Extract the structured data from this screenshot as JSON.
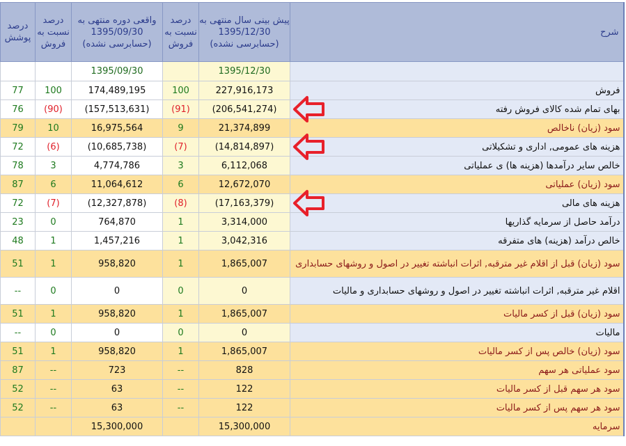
{
  "header": {
    "coverage_pct": "درصد پوشش",
    "actual_pct_of_sales": "درصد نسبت به فروش",
    "actual": "واقعی دوره منتهی به 1395/09/30 (حسابرسی نشده)",
    "forecast_pct_of_sales": "درصد نسبت به فروش",
    "forecast": "پیش بینی سال منتهی به 1395/12/30 (حسابرسی نشده)",
    "description": "شرح"
  },
  "dates": {
    "actual": "1395/09/30",
    "forecast": "1395/12/30"
  },
  "rows": [
    {
      "desc": "فروش",
      "forecast": "227,916,173",
      "forecast_pct": "100",
      "actual": "174,489,195",
      "actual_pct": "100",
      "coverage": "77",
      "highlight": false,
      "neg": false
    },
    {
      "desc": "بهای تمام شده کالای فروش رفته",
      "forecast": "(206,541,274)",
      "forecast_pct": "(91)",
      "actual": "(157,513,631)",
      "actual_pct": "(90)",
      "coverage": "76",
      "highlight": false,
      "neg": true
    },
    {
      "desc": "سود (زیان) ناخالص",
      "forecast": "21,374,899",
      "forecast_pct": "9",
      "actual": "16,975,564",
      "actual_pct": "10",
      "coverage": "79",
      "highlight": true,
      "neg": false
    },
    {
      "desc": "هزینه های عمومی, اداری و تشکیلاتی",
      "forecast": "(14,814,897)",
      "forecast_pct": "(7)",
      "actual": "(10,685,738)",
      "actual_pct": "(6)",
      "coverage": "72",
      "highlight": false,
      "neg": true
    },
    {
      "desc": "خالص سایر درآمدها (هزینه ها) ی عملیاتی",
      "forecast": "6,112,068",
      "forecast_pct": "3",
      "actual": "4,774,786",
      "actual_pct": "3",
      "coverage": "78",
      "highlight": false,
      "neg": false
    },
    {
      "desc": "سود (زیان) عملیاتی",
      "forecast": "12,672,070",
      "forecast_pct": "6",
      "actual": "11,064,612",
      "actual_pct": "6",
      "coverage": "87",
      "highlight": true,
      "neg": false
    },
    {
      "desc": "هزینه های مالی",
      "forecast": "(17,163,379)",
      "forecast_pct": "(8)",
      "actual": "(12,327,878)",
      "actual_pct": "(7)",
      "coverage": "72",
      "highlight": false,
      "neg": true
    },
    {
      "desc": "درآمد حاصل از سرمایه گذاریها",
      "forecast": "3,314,000",
      "forecast_pct": "1",
      "actual": "764,870",
      "actual_pct": "0",
      "coverage": "23",
      "highlight": false,
      "neg": false
    },
    {
      "desc": "خالص درآمد (هزینه) های متفرقه",
      "forecast": "3,042,316",
      "forecast_pct": "1",
      "actual": "1,457,216",
      "actual_pct": "1",
      "coverage": "48",
      "highlight": false,
      "neg": false
    },
    {
      "desc": "سود (زیان) قبل از اقلام غیر مترقبه, اثرات انباشته تغییر در اصول و روشهای حسابداری",
      "forecast": "1,865,007",
      "forecast_pct": "1",
      "actual": "958,820",
      "actual_pct": "1",
      "coverage": "51",
      "highlight": true,
      "neg": false,
      "tall": true
    },
    {
      "desc": "اقلام غیر مترقبه, اثرات انباشته تغییر در اصول و روشهای حسابداری و مالیات",
      "forecast": "0",
      "forecast_pct": "0",
      "actual": "0",
      "actual_pct": "0",
      "coverage": "--",
      "highlight": false,
      "neg": false,
      "tall": true
    },
    {
      "desc": "سود (زیان) قبل از کسر مالیات",
      "forecast": "1,865,007",
      "forecast_pct": "1",
      "actual": "958,820",
      "actual_pct": "1",
      "coverage": "51",
      "highlight": true,
      "neg": false
    },
    {
      "desc": "مالیات",
      "forecast": "0",
      "forecast_pct": "0",
      "actual": "0",
      "actual_pct": "0",
      "coverage": "--",
      "highlight": false,
      "neg": false
    },
    {
      "desc": "سود (زیان) خالص پس از کسر مالیات",
      "forecast": "1,865,007",
      "forecast_pct": "1",
      "actual": "958,820",
      "actual_pct": "1",
      "coverage": "51",
      "highlight": true,
      "neg": false
    },
    {
      "desc": "سود عملیاتی هر سهم",
      "forecast": "828",
      "forecast_pct": "--",
      "actual": "723",
      "actual_pct": "--",
      "coverage": "87",
      "highlight": true,
      "neg": false
    },
    {
      "desc": "سود هر سهم قبل از کسر مالیات",
      "forecast": "122",
      "forecast_pct": "--",
      "actual": "63",
      "actual_pct": "--",
      "coverage": "52",
      "highlight": true,
      "neg": false
    },
    {
      "desc": "سود هر سهم پس از کسر مالیات",
      "forecast": "122",
      "forecast_pct": "--",
      "actual": "63",
      "actual_pct": "--",
      "coverage": "52",
      "highlight": true,
      "neg": false
    },
    {
      "desc": "سرمایه",
      "forecast": "15,300,000",
      "forecast_pct": "",
      "actual": "15,300,000",
      "actual_pct": "",
      "coverage": "",
      "highlight": true,
      "neg": false
    }
  ],
  "annotations": {
    "arrow_rows": [
      1,
      3,
      6
    ],
    "arrow_color": "#e8202a"
  },
  "colors": {
    "header_bg": "#afbbd9",
    "highlight_bg": "#fde19c",
    "forecast_bg": "#fdf8d2",
    "desc_bg": "#e3e9f6"
  }
}
